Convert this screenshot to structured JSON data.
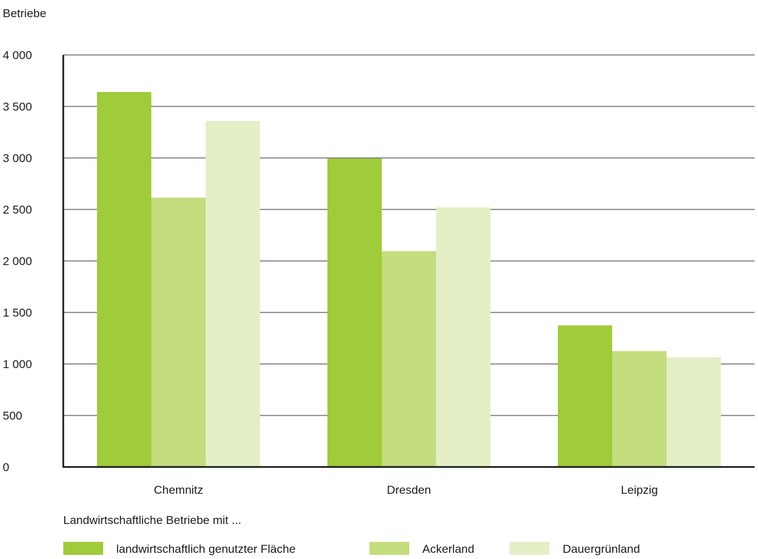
{
  "chart_data": {
    "type": "bar",
    "ylabel": "Betriebe",
    "xlabel": "",
    "categories": [
      "Chemnitz",
      "Dresden",
      "Leipzig"
    ],
    "ylim": [
      0,
      4000
    ],
    "yticks": [
      0,
      500,
      1000,
      1500,
      2000,
      2500,
      3000,
      3500,
      4000
    ],
    "ytick_labels": [
      "0",
      "500",
      "1 000",
      "1 500",
      "2 000",
      "2 500",
      "3 000",
      "3 500",
      "4 000"
    ],
    "grid": true,
    "legend_title": "Landwirtschaftliche Betriebe mit ...",
    "legend_position": "bottom",
    "series": [
      {
        "name": "landwirtschaftlich genutzter Fläche",
        "color": "#a0cb3a",
        "values": [
          3640,
          2995,
          1375
        ]
      },
      {
        "name": "Ackerland",
        "color": "#c4dd7e",
        "values": [
          2615,
          2095,
          1125
        ]
      },
      {
        "name": "Dauergrünland",
        "color": "#e4efc6",
        "values": [
          3360,
          2520,
          1065
        ]
      }
    ]
  }
}
